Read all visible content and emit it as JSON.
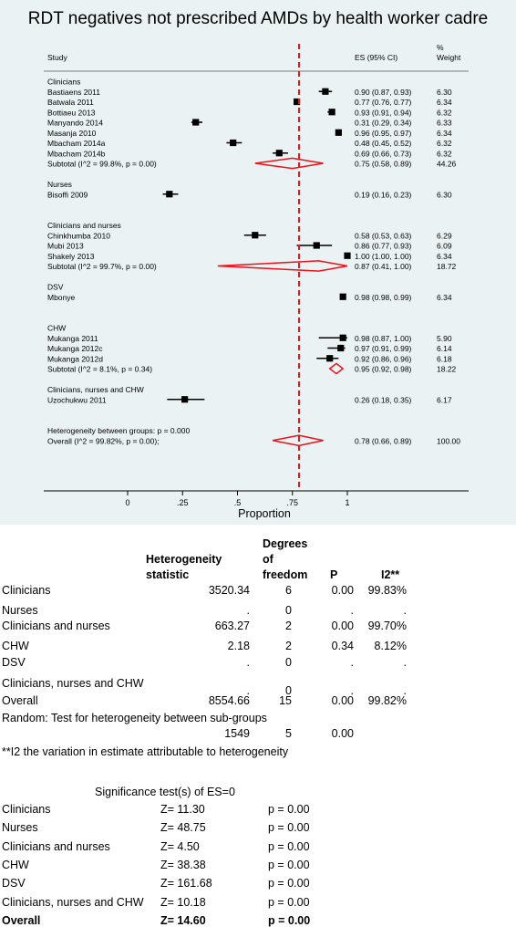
{
  "chart_data": {
    "type": "forest",
    "title": "RDT negatives not prescribed AMDs by health worker cadre",
    "columns": {
      "study": "Study",
      "es": "ES (95% CI)",
      "weight_pct": "%",
      "weight": "Weight"
    },
    "xlabel": "Proportion",
    "xlim": [
      -0.1,
      1.05
    ],
    "xticks": [
      {
        "v": 0,
        "label": "0"
      },
      {
        "v": 0.25,
        "label": ".25"
      },
      {
        "v": 0.5,
        "label": ".5"
      },
      {
        "v": 0.75,
        "label": ".75"
      },
      {
        "v": 1,
        "label": "1"
      }
    ],
    "overall_line": 0.78,
    "rows": [
      {
        "kind": "group",
        "label": "Clinicians"
      },
      {
        "kind": "study",
        "label": "Bastiaens 2011",
        "es": 0.9,
        "lo": 0.87,
        "hi": 0.93,
        "ci": "0.90 (0.87, 0.93)",
        "weight": "6.30"
      },
      {
        "kind": "study",
        "label": "Batwala 2011",
        "es": 0.77,
        "lo": 0.76,
        "hi": 0.77,
        "ci": "0.77 (0.76, 0.77)",
        "weight": "6.34"
      },
      {
        "kind": "study",
        "label": "Bottiaeu 2013",
        "es": 0.93,
        "lo": 0.91,
        "hi": 0.94,
        "ci": "0.93 (0.91, 0.94)",
        "weight": "6.32"
      },
      {
        "kind": "study",
        "label": "Manyando 2014",
        "es": 0.31,
        "lo": 0.29,
        "hi": 0.34,
        "ci": "0.31 (0.29, 0.34)",
        "weight": "6.33"
      },
      {
        "kind": "study",
        "label": "Masanja 2010",
        "es": 0.96,
        "lo": 0.95,
        "hi": 0.97,
        "ci": "0.96 (0.95, 0.97)",
        "weight": "6.34"
      },
      {
        "kind": "study",
        "label": "Mbacham 2014a",
        "es": 0.48,
        "lo": 0.45,
        "hi": 0.52,
        "ci": "0.48 (0.45, 0.52)",
        "weight": "6.32"
      },
      {
        "kind": "study",
        "label": "Mbacham 2014b",
        "es": 0.69,
        "lo": 0.66,
        "hi": 0.73,
        "ci": "0.69 (0.66, 0.73)",
        "weight": "6.32"
      },
      {
        "kind": "subtotal",
        "label": "Subtotal  (I^2 = 99.8%, p = 0.00)",
        "es": 0.75,
        "lo": 0.58,
        "hi": 0.89,
        "ci": "0.75 (0.58, 0.89)",
        "weight": "44.26"
      },
      {
        "kind": "gap"
      },
      {
        "kind": "group",
        "label": "Nurses"
      },
      {
        "kind": "study",
        "label": "Bisoffi 2009",
        "es": 0.19,
        "lo": 0.16,
        "hi": 0.23,
        "ci": "0.19 (0.16, 0.23)",
        "weight": "6.30"
      },
      {
        "kind": "gap"
      },
      {
        "kind": "gap"
      },
      {
        "kind": "group",
        "label": "Clinicians and nurses"
      },
      {
        "kind": "study",
        "label": "Chinkhumba 2010",
        "es": 0.58,
        "lo": 0.53,
        "hi": 0.63,
        "ci": "0.58 (0.53, 0.63)",
        "weight": "6.29"
      },
      {
        "kind": "study",
        "label": "Mubi 2013",
        "es": 0.86,
        "lo": 0.77,
        "hi": 0.93,
        "ci": "0.86 (0.77, 0.93)",
        "weight": "6.09"
      },
      {
        "kind": "study",
        "label": "Shakely 2013",
        "es": 1.0,
        "lo": 1.0,
        "hi": 1.0,
        "ci": "1.00 (1.00, 1.00)",
        "weight": "6.34"
      },
      {
        "kind": "subtotal",
        "label": "Subtotal  (I^2 = 99.7%, p = 0.00)",
        "es": 0.87,
        "lo": 0.41,
        "hi": 1.0,
        "ci": "0.87 (0.41, 1.00)",
        "weight": "18.72"
      },
      {
        "kind": "gap"
      },
      {
        "kind": "group",
        "label": "DSV"
      },
      {
        "kind": "study",
        "label": "Mbonye",
        "es": 0.98,
        "lo": 0.98,
        "hi": 0.99,
        "ci": "0.98 (0.98, 0.99)",
        "weight": "6.34"
      },
      {
        "kind": "gap"
      },
      {
        "kind": "gap"
      },
      {
        "kind": "group",
        "label": "CHW"
      },
      {
        "kind": "study",
        "label": "Mukanga 2011",
        "es": 0.98,
        "lo": 0.87,
        "hi": 1.0,
        "ci": "0.98 (0.87, 1.00)",
        "weight": "5.90"
      },
      {
        "kind": "study",
        "label": "Mukanga 2012c",
        "es": 0.97,
        "lo": 0.91,
        "hi": 0.99,
        "ci": "0.97 (0.91, 0.99)",
        "weight": "6.14"
      },
      {
        "kind": "study",
        "label": "Mukanga 2012d",
        "es": 0.92,
        "lo": 0.86,
        "hi": 0.96,
        "ci": "0.92 (0.86, 0.96)",
        "weight": "6.18"
      },
      {
        "kind": "subtotal",
        "label": "Subtotal  (I^2 = 8.1%, p = 0.34)",
        "es": 0.95,
        "lo": 0.92,
        "hi": 0.98,
        "ci": "0.95 (0.92, 0.98)",
        "weight": "18.22"
      },
      {
        "kind": "gap"
      },
      {
        "kind": "group",
        "label": "Clinicians, nurses and CHW"
      },
      {
        "kind": "study",
        "label": "Uzochukwu 2011",
        "es": 0.26,
        "lo": 0.18,
        "hi": 0.35,
        "ci": "0.26 (0.18, 0.35)",
        "weight": "6.17"
      },
      {
        "kind": "gap"
      },
      {
        "kind": "gap"
      },
      {
        "kind": "group",
        "label": "Heterogeneity between groups: p = 0.000"
      },
      {
        "kind": "subtotal",
        "label": "Overall  (I^2 = 99.82%, p = 0.00);",
        "es": 0.78,
        "lo": 0.66,
        "hi": 0.89,
        "ci": "0.78 (0.66, 0.89)",
        "weight": "100.00"
      }
    ]
  },
  "heterogeneity_table": {
    "headers": {
      "statistic": [
        "Heterogeneity",
        "statistic"
      ],
      "df": [
        "Degrees",
        "of",
        "freedom"
      ],
      "p": "P",
      "i2": "I2**"
    },
    "rows": [
      {
        "label": "Clinicians",
        "stat": "3520.34",
        "df": "6",
        "p": "0.00",
        "i2": "99.83%"
      },
      {
        "label": "Nurses",
        "stat": ".",
        "df": "0",
        "p": ".",
        "i2": "."
      },
      {
        "label": "Clinicians and nurses",
        "stat": "663.27",
        "df": "2",
        "p": "0.00",
        "i2": "99.70%"
      },
      {
        "label": "CHW",
        "stat": "2.18",
        "df": "2",
        "p": "0.34",
        "i2": "8.12%"
      },
      {
        "label": "DSV",
        "stat": ".",
        "df": "0",
        "p": ".",
        "i2": "."
      },
      {
        "label": "Clinicians, nurses and CHW",
        "stat": ".",
        "df": "0",
        "p": ".",
        "i2": "."
      },
      {
        "label": "Overall",
        "stat": "8554.66",
        "df": "15",
        "p": "0.00",
        "i2": "99.82%"
      }
    ],
    "random_label": "Random: Test for heterogeneity between sub-groups",
    "random_row": {
      "stat": "1549",
      "df": "5",
      "p": "0.00"
    },
    "footnote": "**I2 the variation in estimate attributable to heterogeneity"
  },
  "significance_table": {
    "title": "Significance test(s) of ES=0",
    "rows": [
      {
        "label": "Clinicians",
        "z": "Z= 11.30",
        "p": "p = 0.00"
      },
      {
        "label": "Nurses",
        "z": "Z= 48.75",
        "p": "p = 0.00"
      },
      {
        "label": "Clinicians and nurses",
        "z": "Z= 4.50",
        "p": "p = 0.00"
      },
      {
        "label": "CHW",
        "z": "Z= 38.38",
        "p": "p = 0.00"
      },
      {
        "label": "DSV",
        "z": "Z= 161.68",
        "p": "p = 0.00"
      },
      {
        "label": "Clinicians, nurses and CHW",
        "z": "Z= 10.18",
        "p": "p = 0.00"
      },
      {
        "label": "Overall",
        "z": "Z= 14.60",
        "p": "p = 0.00",
        "bold": true
      }
    ]
  },
  "colors": {
    "panel_bg": "#eaf2f3",
    "marker": "#000000",
    "diamond": "#e8131b",
    "ref_line": "#e8131b"
  }
}
